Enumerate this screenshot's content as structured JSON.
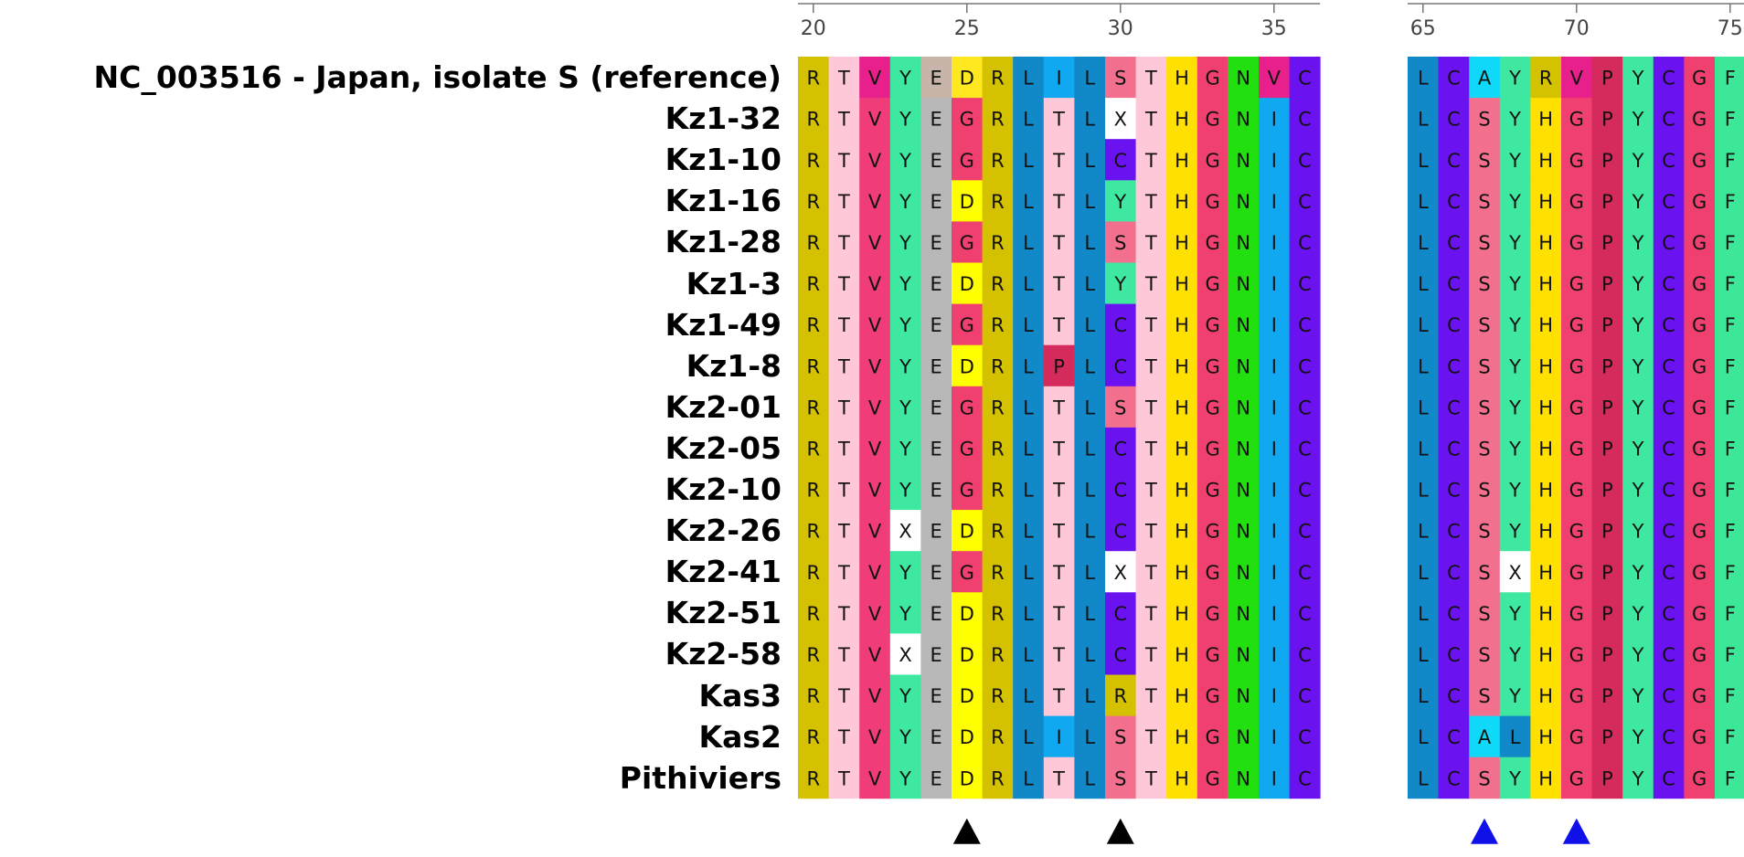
{
  "block1": {
    "start": 20,
    "ticks": [
      20,
      25,
      30,
      35
    ]
  },
  "block2": {
    "start": 65,
    "ticks": [
      65,
      70,
      75
    ]
  },
  "sequences": [
    {
      "name": "NC_003516 - Japan, isolate S (reference)",
      "s1": "RTVYEDRLILSTHGNVC",
      "s2": "LCAYRVPYCGF"
    },
    {
      "name": "Kz1-32",
      "s1": "RTVYEGRLTLXTHGNIC",
      "s2": "LCSYHGPYCGF"
    },
    {
      "name": "Kz1-10",
      "s1": "RTVYEGRLTLCTHGNIC",
      "s2": "LCSYHGPYCGF"
    },
    {
      "name": "Kz1-16",
      "s1": "RTVYEDRLTLYTHGNIC",
      "s2": "LCSYHGPYCGF"
    },
    {
      "name": "Kz1-28",
      "s1": "RTVYEGRLTLSTHGNIC",
      "s2": "LCSYHGPYCGF"
    },
    {
      "name": "Kz1-3",
      "s1": "RTVYEDRLTLYTHGNIC",
      "s2": "LCSYHGPYCGF"
    },
    {
      "name": "Kz1-49",
      "s1": "RTVYEGRLTLCTHGNIC",
      "s2": "LCSYHGPYCGF"
    },
    {
      "name": "Kz1-8",
      "s1": "RTVYEDRLPLCTHGNIC",
      "s2": "LCSYHGPYCGF"
    },
    {
      "name": "Kz2-01",
      "s1": "RTVYEGRLTLSTHGNIC",
      "s2": "LCSYHGPYCGF"
    },
    {
      "name": "Kz2-05",
      "s1": "RTVYEGRLTLCTHGNIC",
      "s2": "LCSYHGPYCGF"
    },
    {
      "name": "Kz2-10",
      "s1": "RTVYEGRLTLCTHGNIC",
      "s2": "LCSYHGPYCGF"
    },
    {
      "name": "Kz2-26",
      "s1": "RTVXEDRLTLCTHGNIC",
      "s2": "LCSYHGPYCGF"
    },
    {
      "name": "Kz2-41",
      "s1": "RTVYEGRLTLXTHGNIC",
      "s2": "LCSXHGPYCGF"
    },
    {
      "name": "Kz2-51",
      "s1": "RTVYEDRLTLCTHGNIC",
      "s2": "LCSYHGPYCGF"
    },
    {
      "name": "Kz2-58",
      "s1": "RTVXEDRLTLCTHGNIC",
      "s2": "LCSYHGPYCGF"
    },
    {
      "name": "Kas3",
      "s1": "RTVYEDRLTLRTHGNIC",
      "s2": "LCSYHGPYCGF"
    },
    {
      "name": "Kas2",
      "s1": "RTVYEDRLILSTHGNIC",
      "s2": "LCALHGPYCGF"
    },
    {
      "name": "Pithiviers",
      "s1": "RTVYEDRLTLSTHGNIC",
      "s2": "LCSYHGPYCGF"
    }
  ],
  "markers": [
    {
      "position": 25,
      "color": "#000000"
    },
    {
      "position": 30,
      "color": "#000000"
    },
    {
      "position": 67,
      "color": "#1010e8"
    },
    {
      "position": 70,
      "color": "#1010e8"
    }
  ],
  "residue_colors": {
    "R": "#d4c100",
    "T": "#ffc8d8",
    "V": "#f03c78",
    "Y": "#3ee8a0",
    "E": "#b8b8b8",
    "D": "#ffff00",
    "G": "#f04070",
    "L": "#1188c8",
    "I": "#10a8f0",
    "S": "#f2708e",
    "H": "#ffe000",
    "N": "#22e010",
    "C": "#6a12f0",
    "P": "#d42a5c",
    "A": "#10d8f8",
    "F": "#3ce898",
    "X": "#ffffff"
  },
  "reference_overrides": {
    "E": "#c8b4a8",
    "D": "#ffe820",
    "V": "#e8208c"
  }
}
